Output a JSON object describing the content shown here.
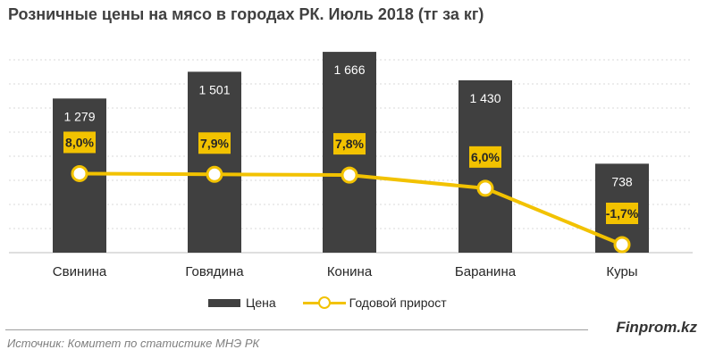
{
  "title": "Розничные цены на мясо в городах РК. Июль 2018  (тг за кг)",
  "legend": {
    "price": "Цена",
    "growth": "Годовой прирост"
  },
  "brand": "Finprom.kz",
  "source": "Источник: Комитет по статистике МНЭ РК",
  "colors": {
    "bar": "#404040",
    "line": "#f2c200",
    "label_box": "#f2c200"
  },
  "chart_data": {
    "type": "bar",
    "title": "Розничные цены на мясо в городах РК. Июль 2018  (тг за кг)",
    "categories": [
      "Свинина",
      "Говядина",
      "Конина",
      "Баранина",
      "Куры"
    ],
    "series": [
      {
        "name": "Цена",
        "type": "bar",
        "values": [
          1279,
          1501,
          1666,
          1430,
          738
        ],
        "labels": [
          "1 279",
          "1 501",
          "1 666",
          "1 430",
          "738"
        ]
      },
      {
        "name": "Годовой прирост",
        "type": "line",
        "values": [
          8.0,
          7.9,
          7.8,
          6.0,
          -1.7
        ],
        "labels": [
          "8,0%",
          "7,9%",
          "7,8%",
          "6,0%",
          "-1,7%"
        ]
      }
    ],
    "ylim": [
      0,
      1800
    ],
    "grid": true,
    "legend_position": "bottom"
  }
}
